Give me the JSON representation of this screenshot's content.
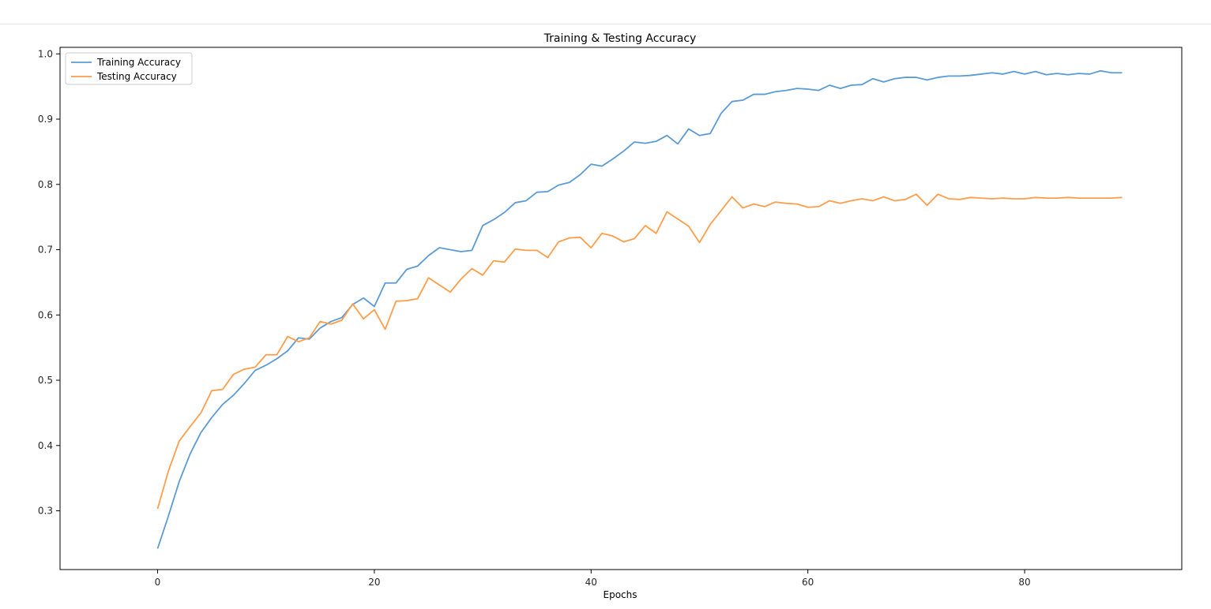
{
  "chart_data": {
    "type": "line",
    "title": "Training & Testing Accuracy",
    "xlabel": "Epochs",
    "ylabel": "",
    "xlim": [
      -9,
      94.5
    ],
    "ylim": [
      0.21,
      1.01
    ],
    "xticks": [
      0,
      20,
      40,
      60,
      80
    ],
    "yticks": [
      0.3,
      0.4,
      0.5,
      0.6,
      0.7,
      0.8,
      0.9,
      1.0
    ],
    "grid": false,
    "legend": "top-left",
    "series": [
      {
        "name": "Training Accuracy",
        "color": "#5b9bd5",
        "values": [
          0.242,
          0.292,
          0.345,
          0.387,
          0.42,
          0.443,
          0.463,
          0.477,
          0.495,
          0.515,
          0.523,
          0.533,
          0.545,
          0.565,
          0.563,
          0.58,
          0.59,
          0.596,
          0.616,
          0.626,
          0.613,
          0.649,
          0.649,
          0.67,
          0.675,
          0.691,
          0.703,
          0.7,
          0.697,
          0.699,
          0.737,
          0.746,
          0.757,
          0.772,
          0.775,
          0.788,
          0.789,
          0.799,
          0.803,
          0.815,
          0.831,
          0.828,
          0.839,
          0.851,
          0.865,
          0.863,
          0.866,
          0.875,
          0.862,
          0.885,
          0.875,
          0.878,
          0.909,
          0.927,
          0.929,
          0.938,
          0.938,
          0.942,
          0.944,
          0.947,
          0.946,
          0.944,
          0.952,
          0.947,
          0.952,
          0.953,
          0.962,
          0.957,
          0.962,
          0.964,
          0.964,
          0.96,
          0.964,
          0.966,
          0.966,
          0.967,
          0.969,
          0.971,
          0.969,
          0.973,
          0.969,
          0.973,
          0.968,
          0.97,
          0.968,
          0.97,
          0.969,
          0.974,
          0.971,
          0.971
        ]
      },
      {
        "name": "Testing Accuracy",
        "color": "#ff9d4a",
        "values": [
          0.303,
          0.361,
          0.407,
          0.429,
          0.45,
          0.484,
          0.486,
          0.509,
          0.517,
          0.52,
          0.539,
          0.539,
          0.567,
          0.559,
          0.565,
          0.59,
          0.586,
          0.592,
          0.617,
          0.594,
          0.608,
          0.578,
          0.621,
          0.622,
          0.625,
          0.657,
          0.646,
          0.635,
          0.655,
          0.671,
          0.661,
          0.683,
          0.681,
          0.701,
          0.699,
          0.699,
          0.688,
          0.712,
          0.718,
          0.719,
          0.703,
          0.725,
          0.721,
          0.712,
          0.717,
          0.737,
          0.725,
          0.758,
          0.747,
          0.736,
          0.711,
          0.739,
          0.76,
          0.781,
          0.764,
          0.77,
          0.766,
          0.773,
          0.771,
          0.77,
          0.765,
          0.766,
          0.775,
          0.771,
          0.775,
          0.778,
          0.775,
          0.781,
          0.775,
          0.777,
          0.785,
          0.768,
          0.785,
          0.778,
          0.777,
          0.78,
          0.779,
          0.778,
          0.779,
          0.778,
          0.778,
          0.78,
          0.779,
          0.779,
          0.78,
          0.779,
          0.779,
          0.779,
          0.779,
          0.78
        ]
      }
    ]
  }
}
